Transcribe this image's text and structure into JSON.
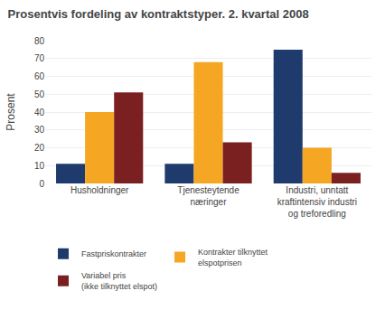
{
  "chart_data": {
    "type": "bar",
    "title": "Prosentvis fordeling av kontraktstyper. 2. kvartal 2008",
    "ylabel": "Prosent",
    "categories": [
      "Husholdninger",
      "Tjenesteytende\nnæringer",
      "Industri, unntatt\nkraftintensiv industri\nog treforedling"
    ],
    "series": [
      {
        "name": "Fastpriskontrakter",
        "color": "#1F3B6E",
        "values": [
          11,
          11,
          75
        ]
      },
      {
        "name": "Kontrakter tilknyttet\nelspotprisen",
        "color": "#F5A623",
        "values": [
          40,
          68,
          20
        ]
      },
      {
        "name": "Variabel pris\n(ikke tilknyttet elspot)",
        "color": "#7B2020",
        "values": [
          51,
          23,
          6
        ]
      }
    ],
    "ylim": [
      0,
      80
    ],
    "yticks": [
      0,
      10,
      20,
      30,
      40,
      50,
      60,
      70,
      80
    ],
    "grid": true,
    "legend": "lower left"
  }
}
